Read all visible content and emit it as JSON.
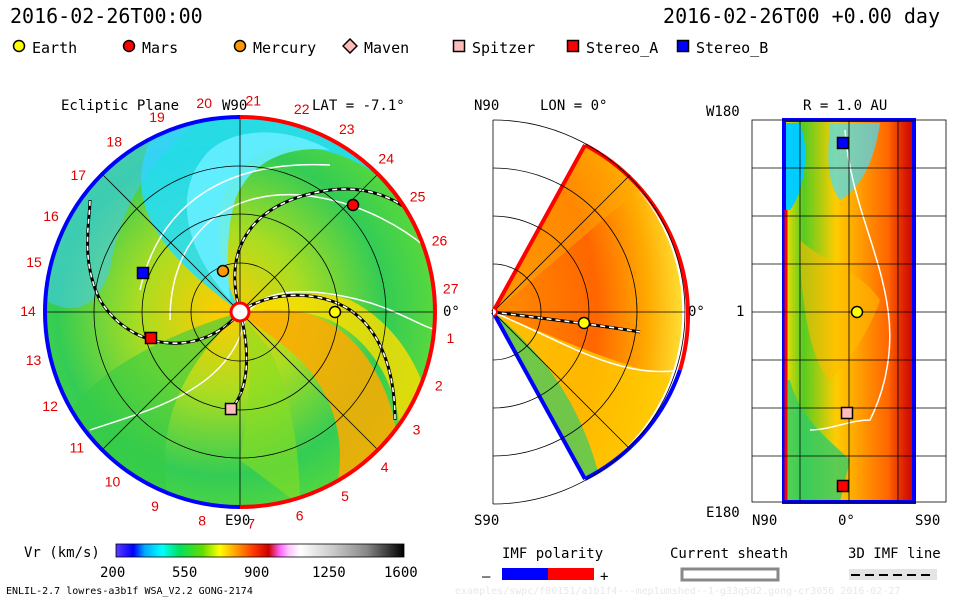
{
  "header": {
    "date_left": "2016-02-26T00:00",
    "date_right": "2016-02-26T00 +0.00 day"
  },
  "legend": [
    {
      "name": "Earth",
      "shape": "circle",
      "color": "#ffff00"
    },
    {
      "name": "Mars",
      "shape": "circle",
      "color": "#ff0000"
    },
    {
      "name": "Mercury",
      "shape": "circle",
      "color": "#ff9900"
    },
    {
      "name": "Maven",
      "shape": "diamond",
      "color": "#ffbbbb"
    },
    {
      "name": "Spitzer",
      "shape": "square",
      "color": "#ffbbbb"
    },
    {
      "name": "Stereo_A",
      "shape": "square",
      "color": "#ff0000"
    },
    {
      "name": "Stereo_B",
      "shape": "square",
      "color": "#0000ff"
    }
  ],
  "panels": {
    "ecliptic": {
      "title": "Ecliptic Plane",
      "top_label": "W90",
      "bottom_label": "E90",
      "right_label": "0°",
      "lat_label": "LAT = -7.1°",
      "rotation_labels": [
        "1",
        "2",
        "3",
        "4",
        "5",
        "6",
        "7",
        "8",
        "9",
        "10",
        "11",
        "12",
        "13",
        "14",
        "15",
        "16",
        "17",
        "18",
        "19",
        "20",
        "21",
        "22",
        "23",
        "24",
        "25",
        "26",
        "27"
      ]
    },
    "meridional": {
      "top_label": "N90",
      "bottom_label": "S90",
      "right_label": "0°",
      "lon_label": "LON = 0°"
    },
    "map": {
      "title": "R = 1.0 AU",
      "y_top": "W180",
      "y_mid": "1",
      "y_bottom": "E180",
      "x_left": "N90",
      "x_mid": "0°",
      "x_right": "S90"
    }
  },
  "colorbar": {
    "label": "Vr (km/s)",
    "ticks": [
      "200",
      "550",
      "900",
      "1250",
      "1600"
    ]
  },
  "imf": {
    "label": "IMF polarity",
    "minus": "–",
    "plus": "+"
  },
  "sheath": {
    "label": "Current sheath"
  },
  "imf_line": {
    "label": "3D IMF line"
  },
  "footer": {
    "left": "ENLIL-2.7 lowres-a3b1f WSA_V2.2 GONG-2174",
    "right": "examples/swpc/f80151/a1b1f4---mep1umshed--1-g33q5d2.gong-cr3056   2016-02-27"
  },
  "chart_data": {
    "type": "heatmap",
    "quantity": "Vr (km/s)",
    "colorbar_range": [
      200,
      1600
    ],
    "colorbar_ticks": [
      200,
      550,
      900,
      1250,
      1600
    ],
    "panels": [
      "Ecliptic Plane",
      "LON = 0°",
      "R = 1.0 AU"
    ],
    "bodies": [
      "Earth",
      "Mars",
      "Mercury",
      "Maven",
      "Spitzer",
      "Stereo_A",
      "Stereo_B"
    ]
  }
}
